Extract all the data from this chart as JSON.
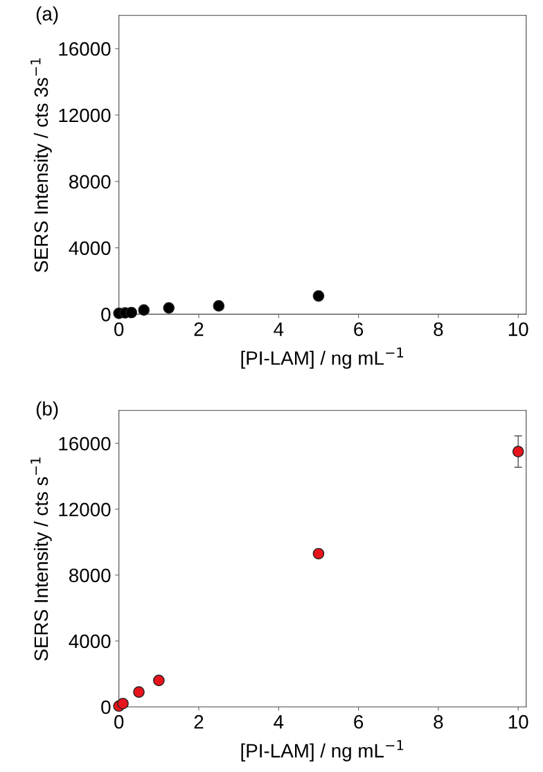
{
  "chart_data": [
    {
      "type": "scatter",
      "xlabel": "[PI-LAM] / ng mL$^{−1}$",
      "ylabel": "SERS Intensity / cts 3s$^{−1}$",
      "annotations": [
        "(a)"
      ],
      "x": [
        0,
        0.156,
        0.3125,
        0.625,
        1.25,
        2.5,
        5
      ],
      "series": [
        {
          "color": "#000000",
          "values": [
            50,
            80,
            100,
            250,
            380,
            500,
            1100
          ]
        }
      ],
      "xlim": [
        0,
        10.2
      ],
      "xticks": [
        0,
        2,
        4,
        6,
        8,
        10
      ],
      "ylim": [
        0,
        18000
      ],
      "yticks": [
        0,
        4000,
        8000,
        12000,
        16000
      ],
      "marker": "circle",
      "grid": false,
      "legend": false
    },
    {
      "type": "scatter",
      "xlabel": "[PI-LAM] / ng mL$^{−1}$",
      "ylabel": "SERS Intensity / cts s$^{−1}$",
      "annotations": [
        "(b)"
      ],
      "x": [
        0,
        0.1,
        0.5,
        1,
        5,
        10
      ],
      "series": [
        {
          "color": "#e8141c",
          "values": [
            50,
            200,
            900,
            1600,
            9300,
            15500
          ],
          "errors": [
            null,
            null,
            null,
            null,
            null,
            950
          ]
        }
      ],
      "xlim": [
        0,
        10.2
      ],
      "xticks": [
        0,
        2,
        4,
        6,
        8,
        10
      ],
      "ylim": [
        0,
        18000
      ],
      "yticks": [
        0,
        4000,
        8000,
        12000,
        16000
      ],
      "marker": "circle",
      "grid": false,
      "legend": false
    }
  ]
}
